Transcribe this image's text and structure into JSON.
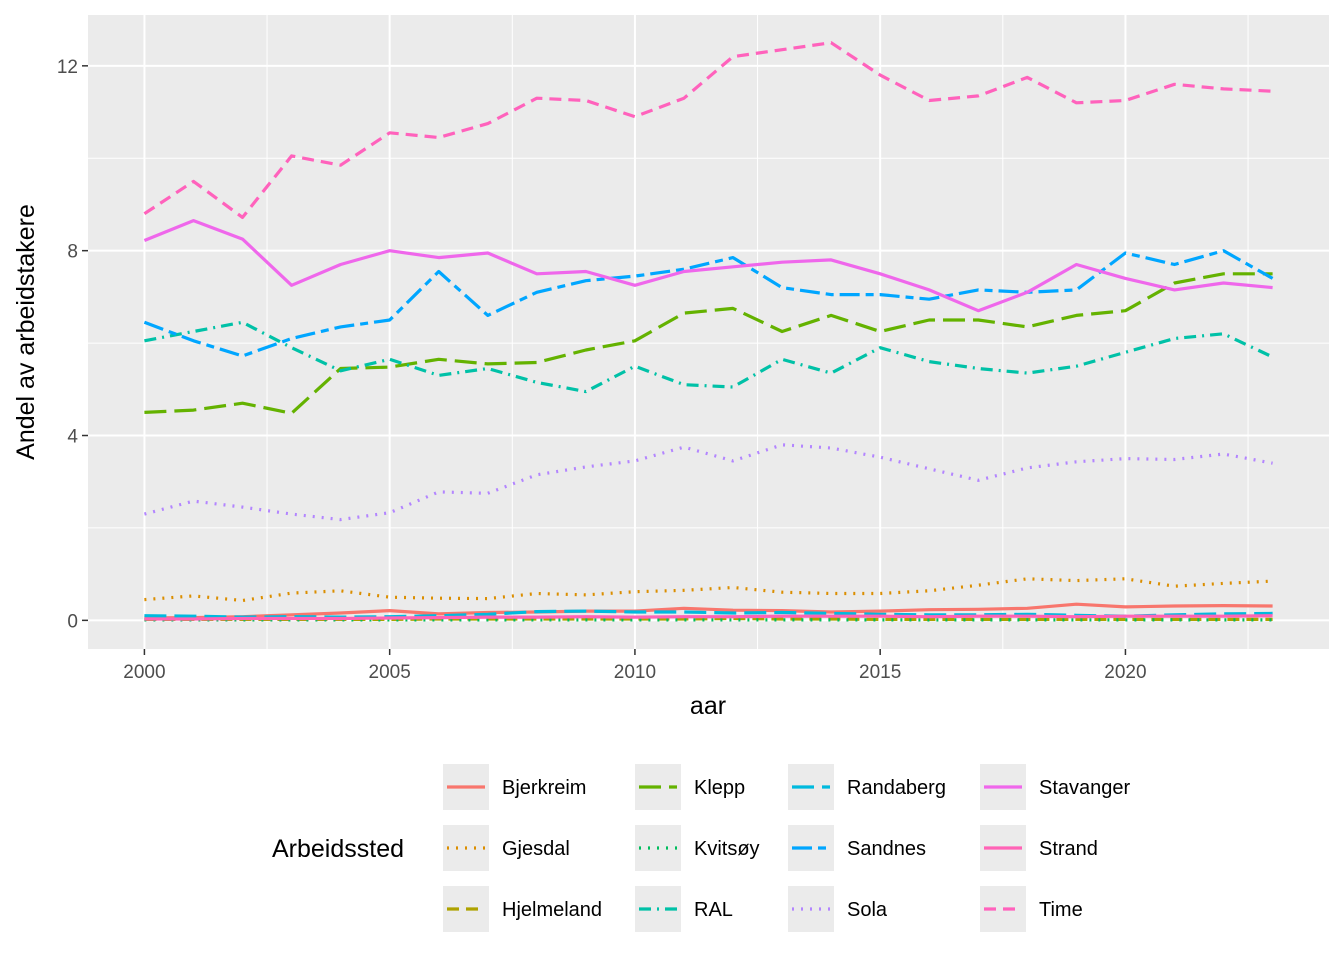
{
  "chart_data": {
    "type": "line",
    "xlabel": "aar",
    "ylabel": "Andel av arbeidstakere",
    "xlim": [
      1998.85,
      2024.15
    ],
    "ylim": [
      -0.62,
      13.1
    ],
    "x_ticks": [
      2000,
      2005,
      2010,
      2015,
      2020
    ],
    "y_ticks": [
      0,
      4,
      8,
      12
    ],
    "grid": true,
    "legend": {
      "title": "Arbeidssted",
      "position": "bottom"
    },
    "x": [
      2000,
      2001,
      2002,
      2003,
      2004,
      2005,
      2006,
      2007,
      2008,
      2009,
      2010,
      2011,
      2012,
      2013,
      2014,
      2015,
      2016,
      2017,
      2018,
      2019,
      2020,
      2021,
      2022,
      2023
    ],
    "series": [
      {
        "name": "Bjerkreim",
        "color": "#F8766D",
        "dash": "solid",
        "values": [
          0.05,
          0.06,
          0.08,
          0.12,
          0.16,
          0.21,
          0.14,
          0.17,
          0.18,
          0.2,
          0.2,
          0.26,
          0.22,
          0.21,
          0.18,
          0.2,
          0.23,
          0.24,
          0.26,
          0.35,
          0.29,
          0.31,
          0.32,
          0.31
        ]
      },
      {
        "name": "Gjesdal",
        "color": "#DB8E00",
        "dash": "dotted",
        "values": [
          0.45,
          0.53,
          0.43,
          0.59,
          0.64,
          0.5,
          0.48,
          0.47,
          0.58,
          0.55,
          0.62,
          0.65,
          0.71,
          0.61,
          0.58,
          0.58,
          0.64,
          0.76,
          0.9,
          0.86,
          0.9,
          0.74,
          0.8,
          0.85
        ]
      },
      {
        "name": "Hjelmeland",
        "color": "#AEA200",
        "dash": "dashed",
        "values": [
          0.02,
          0.02,
          0.02,
          0.02,
          0.02,
          0.02,
          0.03,
          0.03,
          0.03,
          0.03,
          0.03,
          0.03,
          0.04,
          0.03,
          0.03,
          0.02,
          0.02,
          0.02,
          0.02,
          0.02,
          0.02,
          0.02,
          0.02,
          0.02
        ]
      },
      {
        "name": "Klepp",
        "color": "#64B200",
        "dash": "longdash",
        "values": [
          4.5,
          4.55,
          4.7,
          4.48,
          5.45,
          5.48,
          5.65,
          5.55,
          5.58,
          5.85,
          6.05,
          6.65,
          6.75,
          6.25,
          6.6,
          6.25,
          6.5,
          6.5,
          6.35,
          6.6,
          6.7,
          7.3,
          7.5,
          7.5
        ]
      },
      {
        "name": "Kvitsøy",
        "color": "#00BD5C",
        "dash": "dotted",
        "values": [
          0.01,
          0.01,
          0.01,
          0.01,
          0.01,
          0.01,
          0.01,
          0.01,
          0.01,
          0.01,
          0.01,
          0.01,
          0.01,
          0.01,
          0.01,
          0.01,
          0.01,
          0.01,
          0.01,
          0.01,
          0.01,
          0.01,
          0.01,
          0.01
        ]
      },
      {
        "name": "RAL",
        "color": "#00C1A7",
        "dash": "dashdot",
        "values": [
          6.05,
          6.25,
          6.45,
          5.9,
          5.4,
          5.65,
          5.3,
          5.45,
          5.15,
          4.95,
          5.5,
          5.1,
          5.05,
          5.65,
          5.35,
          5.9,
          5.6,
          5.45,
          5.35,
          5.5,
          5.8,
          6.1,
          6.2,
          5.7
        ]
      },
      {
        "name": "Randaberg",
        "color": "#00BADE",
        "dash": "longdash",
        "values": [
          0.1,
          0.09,
          0.07,
          0.08,
          0.07,
          0.08,
          0.1,
          0.13,
          0.19,
          0.2,
          0.18,
          0.18,
          0.16,
          0.17,
          0.15,
          0.13,
          0.12,
          0.12,
          0.13,
          0.11,
          0.09,
          0.12,
          0.14,
          0.15
        ]
      },
      {
        "name": "Sandnes",
        "color": "#00A6FF",
        "dash": "twodash",
        "values": [
          6.45,
          6.05,
          5.72,
          6.1,
          6.35,
          6.5,
          7.55,
          6.6,
          7.1,
          7.35,
          7.45,
          7.6,
          7.85,
          7.2,
          7.05,
          7.05,
          6.95,
          7.15,
          7.1,
          7.15,
          7.95,
          7.7,
          8.0,
          7.4
        ]
      },
      {
        "name": "Sola",
        "color": "#B385FF",
        "dash": "dotted",
        "values": [
          2.3,
          2.58,
          2.45,
          2.3,
          2.18,
          2.33,
          2.78,
          2.75,
          3.15,
          3.32,
          3.45,
          3.75,
          3.45,
          3.8,
          3.73,
          3.53,
          3.28,
          3.03,
          3.3,
          3.43,
          3.5,
          3.48,
          3.6,
          3.4
        ]
      },
      {
        "name": "Stavanger",
        "color": "#EF67EB",
        "dash": "solid",
        "values": [
          8.22,
          8.65,
          8.25,
          7.25,
          7.7,
          8.0,
          7.85,
          7.95,
          7.5,
          7.55,
          7.25,
          7.55,
          7.65,
          7.75,
          7.8,
          7.5,
          7.15,
          6.7,
          7.1,
          7.7,
          7.4,
          7.15,
          7.3,
          7.2
        ]
      },
      {
        "name": "Strand",
        "color": "#FF63B6",
        "dash": "solid",
        "values": [
          0.03,
          0.03,
          0.04,
          0.04,
          0.04,
          0.05,
          0.06,
          0.07,
          0.07,
          0.08,
          0.07,
          0.08,
          0.08,
          0.09,
          0.09,
          0.09,
          0.08,
          0.09,
          0.09,
          0.08,
          0.09,
          0.09,
          0.09,
          0.1
        ]
      },
      {
        "name": "Time",
        "color": "#FF62BC",
        "dash": "dashed",
        "values": [
          8.8,
          9.5,
          8.72,
          10.05,
          9.85,
          10.55,
          10.45,
          10.75,
          11.3,
          11.25,
          10.9,
          11.3,
          12.2,
          12.35,
          12.5,
          11.8,
          11.25,
          11.35,
          11.75,
          11.2,
          11.25,
          11.6,
          11.5,
          11.45
        ]
      }
    ]
  }
}
